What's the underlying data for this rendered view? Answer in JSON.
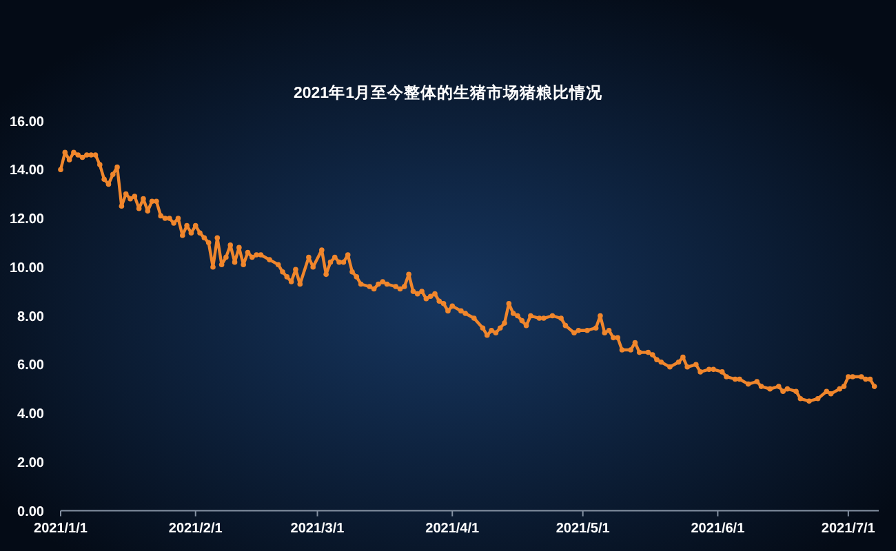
{
  "chart_data": {
    "type": "line",
    "title": "2021年1月至今整体的生猪市场猪粮比情况",
    "x": [
      "2021-01-01",
      "2021-01-02",
      "2021-01-03",
      "2021-01-04",
      "2021-01-05",
      "2021-01-06",
      "2021-01-07",
      "2021-01-08",
      "2021-01-09",
      "2021-01-10",
      "2021-01-11",
      "2021-01-12",
      "2021-01-13",
      "2021-01-14",
      "2021-01-15",
      "2021-01-16",
      "2021-01-17",
      "2021-01-18",
      "2021-01-19",
      "2021-01-20",
      "2021-01-21",
      "2021-01-22",
      "2021-01-23",
      "2021-01-24",
      "2021-01-25",
      "2021-01-26",
      "2021-01-27",
      "2021-01-28",
      "2021-01-29",
      "2021-01-30",
      "2021-01-31",
      "2021-02-01",
      "2021-02-02",
      "2021-02-03",
      "2021-02-04",
      "2021-02-05",
      "2021-02-06",
      "2021-02-07",
      "2021-02-08",
      "2021-02-09",
      "2021-02-10",
      "2021-02-11",
      "2021-02-12",
      "2021-02-13",
      "2021-02-14",
      "2021-02-15",
      "2021-02-16",
      "2021-02-18",
      "2021-02-20",
      "2021-02-21",
      "2021-02-22",
      "2021-02-23",
      "2021-02-24",
      "2021-02-25",
      "2021-02-27",
      "2021-02-28",
      "2021-03-02",
      "2021-03-03",
      "2021-03-04",
      "2021-03-05",
      "2021-03-06",
      "2021-03-07",
      "2021-03-08",
      "2021-03-09",
      "2021-03-10",
      "2021-03-11",
      "2021-03-13",
      "2021-03-14",
      "2021-03-15",
      "2021-03-16",
      "2021-03-17",
      "2021-03-19",
      "2021-03-20",
      "2021-03-21",
      "2021-03-22",
      "2021-03-23",
      "2021-03-24",
      "2021-03-25",
      "2021-03-26",
      "2021-03-27",
      "2021-03-28",
      "2021-03-29",
      "2021-03-30",
      "2021-03-31",
      "2021-04-01",
      "2021-04-03",
      "2021-04-04",
      "2021-04-06",
      "2021-04-08",
      "2021-04-09",
      "2021-04-10",
      "2021-04-11",
      "2021-04-12",
      "2021-04-13",
      "2021-04-14",
      "2021-04-15",
      "2021-04-16",
      "2021-04-17",
      "2021-04-18",
      "2021-04-19",
      "2021-04-21",
      "2021-04-22",
      "2021-04-24",
      "2021-04-26",
      "2021-04-27",
      "2021-04-29",
      "2021-04-30",
      "2021-05-02",
      "2021-05-04",
      "2021-05-05",
      "2021-05-06",
      "2021-05-07",
      "2021-05-08",
      "2021-05-09",
      "2021-05-10",
      "2021-05-12",
      "2021-05-13",
      "2021-05-14",
      "2021-05-16",
      "2021-05-17",
      "2021-05-18",
      "2021-05-19",
      "2021-05-21",
      "2021-05-23",
      "2021-05-24",
      "2021-05-25",
      "2021-05-27",
      "2021-05-28",
      "2021-05-30",
      "2021-05-31",
      "2021-06-02",
      "2021-06-03",
      "2021-06-05",
      "2021-06-06",
      "2021-06-08",
      "2021-06-10",
      "2021-06-11",
      "2021-06-13",
      "2021-06-15",
      "2021-06-16",
      "2021-06-17",
      "2021-06-19",
      "2021-06-20",
      "2021-06-22",
      "2021-06-24",
      "2021-06-26",
      "2021-06-27",
      "2021-06-29",
      "2021-06-30",
      "2021-07-01",
      "2021-07-02",
      "2021-07-04",
      "2021-07-05",
      "2021-07-06",
      "2021-07-07"
    ],
    "series": [
      {
        "color": "#f0862c",
        "values": [
          14.0,
          14.7,
          14.4,
          14.7,
          14.6,
          14.5,
          14.6,
          14.6,
          14.6,
          14.2,
          13.6,
          13.4,
          13.8,
          14.1,
          12.5,
          13.0,
          12.8,
          12.9,
          12.4,
          12.8,
          12.3,
          12.7,
          12.7,
          12.1,
          12.0,
          12.0,
          11.8,
          12.0,
          11.3,
          11.7,
          11.4,
          11.7,
          11.4,
          11.2,
          11.0,
          10.0,
          11.2,
          10.1,
          10.4,
          10.9,
          10.2,
          10.8,
          10.1,
          10.6,
          10.4,
          10.5,
          10.5,
          10.3,
          10.1,
          9.8,
          9.6,
          9.4,
          9.9,
          9.3,
          10.4,
          10.0,
          10.7,
          9.7,
          10.2,
          10.4,
          10.2,
          10.2,
          10.5,
          9.8,
          9.6,
          9.3,
          9.2,
          9.1,
          9.3,
          9.4,
          9.3,
          9.2,
          9.1,
          9.2,
          9.7,
          9.0,
          8.9,
          9.0,
          8.7,
          8.8,
          8.9,
          8.6,
          8.5,
          8.2,
          8.4,
          8.2,
          8.1,
          7.9,
          7.5,
          7.2,
          7.4,
          7.3,
          7.5,
          7.7,
          8.5,
          8.1,
          8.0,
          7.8,
          7.6,
          8.0,
          7.9,
          7.9,
          8.0,
          7.9,
          7.6,
          7.3,
          7.4,
          7.4,
          7.5,
          8.0,
          7.3,
          7.4,
          7.1,
          7.1,
          6.6,
          6.6,
          6.9,
          6.5,
          6.5,
          6.4,
          6.2,
          6.1,
          5.9,
          6.1,
          6.3,
          5.9,
          6.0,
          5.7,
          5.8,
          5.8,
          5.7,
          5.5,
          5.4,
          5.4,
          5.2,
          5.3,
          5.1,
          5.0,
          5.1,
          4.9,
          5.0,
          4.9,
          4.6,
          4.5,
          4.6,
          4.9,
          4.8,
          5.0,
          5.1,
          5.5,
          5.5,
          5.5,
          5.4,
          5.4,
          5.1
        ]
      }
    ],
    "xlim": [
      "2021-01-01",
      "2021-07-08"
    ],
    "xticks": [
      {
        "value": "2021-01-01",
        "label": "2021/1/1"
      },
      {
        "value": "2021-02-01",
        "label": "2021/2/1"
      },
      {
        "value": "2021-03-01",
        "label": "2021/3/1"
      },
      {
        "value": "2021-04-01",
        "label": "2021/4/1"
      },
      {
        "value": "2021-05-01",
        "label": "2021/5/1"
      },
      {
        "value": "2021-06-01",
        "label": "2021/6/1"
      },
      {
        "value": "2021-07-01",
        "label": "2021/7/1"
      }
    ],
    "ylim": [
      0,
      16
    ],
    "yticks": [
      {
        "value": 0,
        "label": "0.00"
      },
      {
        "value": 2,
        "label": "2.00"
      },
      {
        "value": 4,
        "label": "4.00"
      },
      {
        "value": 6,
        "label": "6.00"
      },
      {
        "value": 8,
        "label": "8.00"
      },
      {
        "value": 10,
        "label": "10.00"
      },
      {
        "value": 12,
        "label": "12.00"
      },
      {
        "value": 14,
        "label": "14.00"
      },
      {
        "value": 16,
        "label": "16.00"
      }
    ],
    "marker": "circle",
    "line_style": "solid"
  }
}
